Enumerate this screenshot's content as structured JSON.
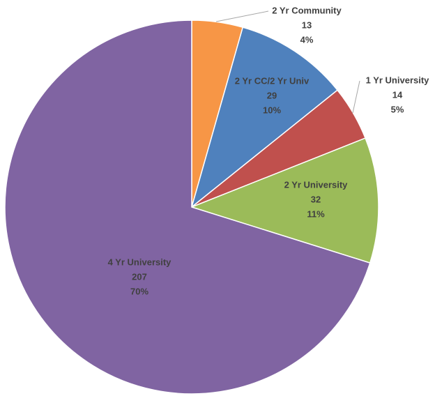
{
  "chart_data": {
    "type": "pie",
    "categories": [
      "2 Yr Community",
      "2 Yr CC/2 Yr Univ",
      "1 Yr University",
      "2 Yr University",
      "4 Yr University"
    ],
    "values": [
      13,
      29,
      14,
      32,
      207
    ],
    "percents": [
      4,
      10,
      5,
      11,
      70
    ],
    "percent_labels": [
      "4%",
      "10%",
      "5%",
      "11%",
      "70%"
    ],
    "colors": [
      "#f79646",
      "#4f81bd",
      "#c0504d",
      "#9bbb59",
      "#8064a2"
    ]
  }
}
